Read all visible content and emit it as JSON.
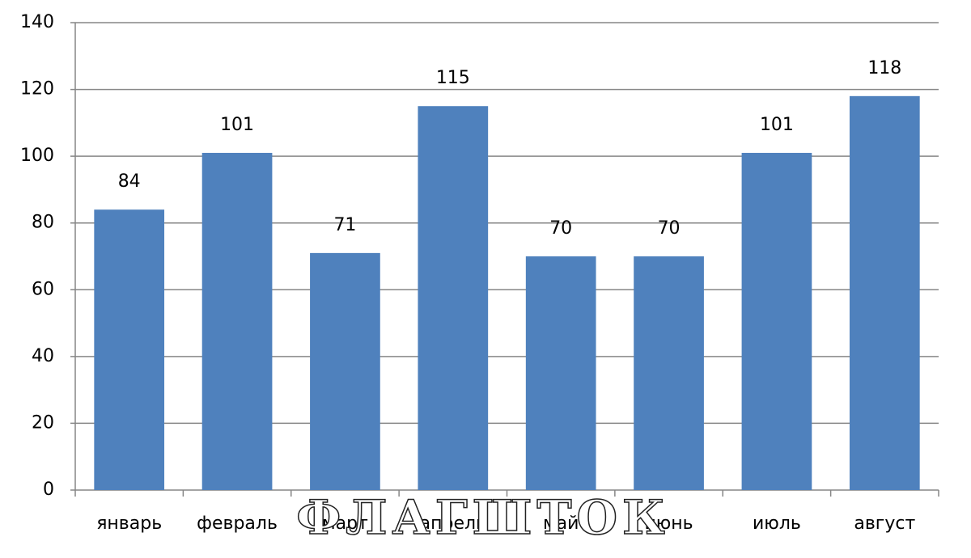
{
  "chart_data": {
    "type": "bar",
    "categories": [
      "январь",
      "февраль",
      "март",
      "апрель",
      "май",
      "июнь",
      "июль",
      "август"
    ],
    "values": [
      84,
      101,
      71,
      115,
      70,
      70,
      101,
      118
    ],
    "color": "#4f81bd",
    "ylim": [
      0,
      140
    ],
    "yticks": [
      0,
      20,
      40,
      60,
      80,
      100,
      120,
      140
    ],
    "grid": true,
    "data_labels": true,
    "watermark": "ФЛАГШТОК"
  }
}
